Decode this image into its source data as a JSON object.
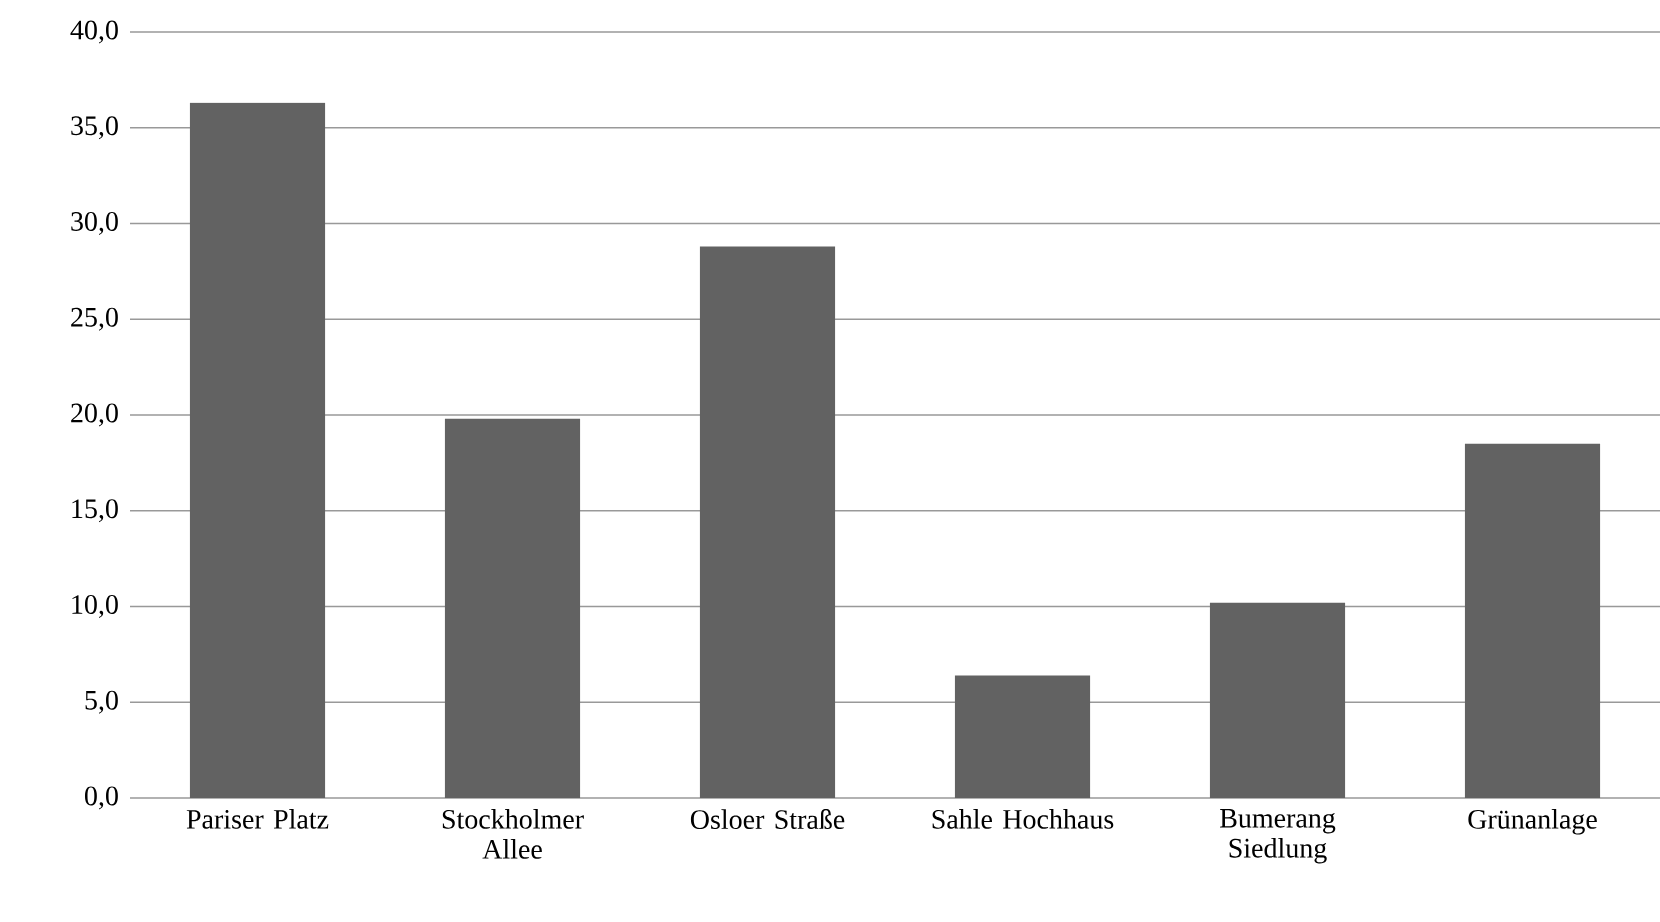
{
  "chart_data": {
    "type": "bar",
    "categories": [
      "Pariser Platz",
      "Stockholmer Allee",
      "Osloer Straße",
      "Sahle Hochhaus",
      "Bumerang Siedlung",
      "Grünanlage"
    ],
    "values": [
      36.3,
      19.8,
      28.8,
      6.4,
      10.2,
      18.5
    ],
    "color": "#626262",
    "ylim": [
      0,
      40
    ],
    "yticks": [
      {
        "value": 0,
        "label": "0,0"
      },
      {
        "value": 5,
        "label": "5,0"
      },
      {
        "value": 10,
        "label": "10,0"
      },
      {
        "value": 15,
        "label": "15,0"
      },
      {
        "value": 20,
        "label": "20,0"
      },
      {
        "value": 25,
        "label": "25,0"
      },
      {
        "value": 30,
        "label": "30,0"
      },
      {
        "value": 35,
        "label": "35,0"
      },
      {
        "value": 40,
        "label": "40,0"
      }
    ],
    "grid": "y"
  }
}
